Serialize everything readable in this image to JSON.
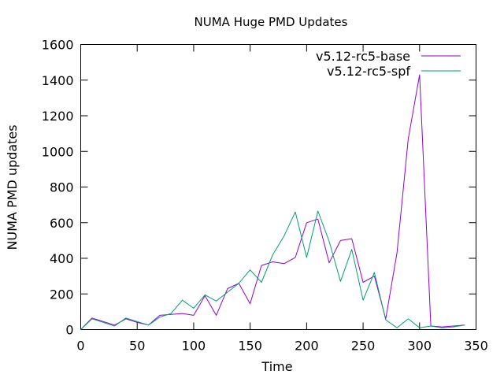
{
  "chart_data": {
    "type": "line",
    "title": "NUMA Huge PMD Updates",
    "xlabel": "Time",
    "ylabel": "NUMA PMD updates",
    "xlim": [
      0,
      350
    ],
    "ylim": [
      0,
      1600
    ],
    "x_ticks": [
      0,
      50,
      100,
      150,
      200,
      250,
      300,
      350
    ],
    "y_ticks": [
      0,
      200,
      400,
      600,
      800,
      1000,
      1200,
      1400,
      1600
    ],
    "grid": false,
    "legend_position": "top-right",
    "series": [
      {
        "name": "v5.12-rc5-base",
        "color": "#9400d3",
        "x": [
          0,
          10,
          20,
          30,
          40,
          50,
          60,
          70,
          80,
          90,
          100,
          110,
          120,
          130,
          140,
          150,
          160,
          170,
          180,
          190,
          200,
          210,
          220,
          230,
          240,
          250,
          260,
          270,
          280,
          290,
          300,
          310,
          320,
          330,
          340
        ],
        "y": [
          0,
          65,
          45,
          25,
          60,
          40,
          25,
          80,
          85,
          90,
          80,
          190,
          80,
          230,
          260,
          145,
          360,
          380,
          370,
          405,
          600,
          620,
          375,
          500,
          510,
          265,
          300,
          60,
          430,
          1070,
          1430,
          20,
          15,
          20,
          25
        ]
      },
      {
        "name": "v5.12-rc5-spf",
        "color": "#009e73",
        "x": [
          0,
          10,
          20,
          30,
          40,
          50,
          60,
          70,
          80,
          90,
          100,
          110,
          120,
          130,
          140,
          150,
          160,
          170,
          180,
          190,
          200,
          210,
          220,
          230,
          240,
          250,
          260,
          270,
          280,
          290,
          300,
          310,
          320,
          330,
          340
        ],
        "y": [
          0,
          60,
          40,
          20,
          65,
          45,
          25,
          70,
          90,
          165,
          120,
          195,
          160,
          210,
          260,
          335,
          265,
          420,
          525,
          660,
          405,
          665,
          495,
          270,
          450,
          165,
          320,
          55,
          10,
          60,
          10,
          20,
          10,
          15,
          25
        ]
      }
    ]
  }
}
